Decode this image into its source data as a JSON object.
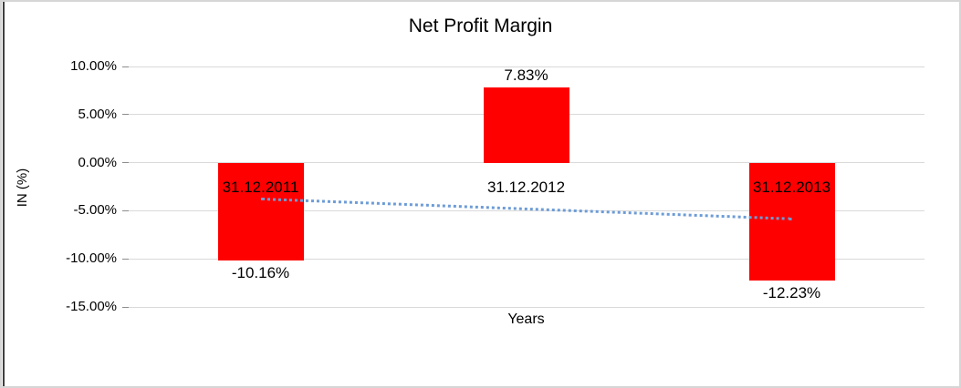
{
  "chart_data": {
    "type": "bar",
    "title": "Net Profit Margin",
    "xlabel": "Years",
    "ylabel": "IN (%)",
    "categories": [
      "31.12.2011",
      "31.12.2012",
      "31.12.2013"
    ],
    "values": [
      -10.16,
      7.83,
      -12.23
    ],
    "data_labels": [
      "-10.16%",
      "7.83%",
      "-12.23%"
    ],
    "ylim": [
      -15,
      10
    ],
    "yticks": [
      10,
      5,
      0,
      -5,
      -10,
      -15
    ],
    "ytick_labels": [
      "10.00%",
      "5.00%",
      "0.00%",
      "-5.00%",
      "-10.00%",
      "-15.00%"
    ],
    "grid": true,
    "legend": "none",
    "bar_color": "#FF0000",
    "trendline": {
      "type": "linear",
      "style": "dotted",
      "color": "#6D9CD6",
      "start_value": -3.82,
      "end_value": -5.89
    }
  },
  "colors": {
    "gridline": "#D9D9D9",
    "tick": "#8C8C8C",
    "text": "#000000",
    "canvas_border": "#D6D6D6",
    "left_edge": "#3F3F3F",
    "background": "#FFFFFF"
  }
}
